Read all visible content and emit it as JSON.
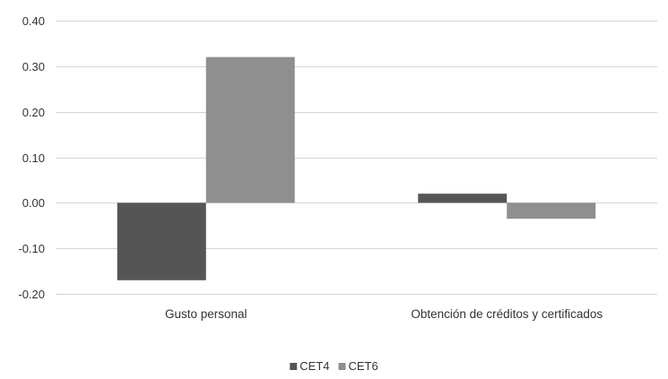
{
  "chart_data": {
    "type": "bar",
    "title": "",
    "xlabel": "",
    "ylabel": "",
    "categories": [
      "Gusto personal",
      "Obtención de créditos y certificados"
    ],
    "series": [
      {
        "name": "CET4",
        "values": [
          -0.17,
          0.02
        ],
        "color": "#555555"
      },
      {
        "name": "CET6",
        "values": [
          0.32,
          -0.035
        ],
        "color": "#8f8f8f"
      }
    ],
    "ylim": [
      -0.2,
      0.4
    ],
    "yticks": [
      0.4,
      0.3,
      0.2,
      0.1,
      0.0,
      -0.1,
      -0.2
    ],
    "ytick_labels": [
      "0.40",
      "0.30",
      "0.20",
      "0.10",
      "0.00",
      "-0.10",
      "-0.20"
    ],
    "grid": true,
    "legend_position": "bottom-center"
  }
}
